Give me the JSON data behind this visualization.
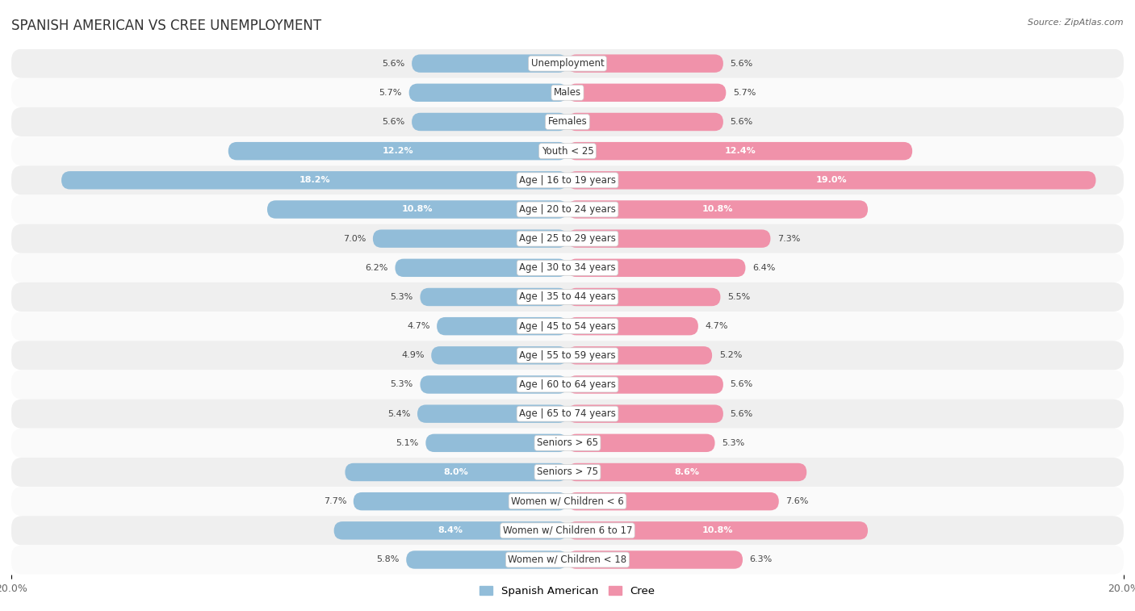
{
  "title": "SPANISH AMERICAN VS CREE UNEMPLOYMENT",
  "source": "Source: ZipAtlas.com",
  "categories": [
    "Unemployment",
    "Males",
    "Females",
    "Youth < 25",
    "Age | 16 to 19 years",
    "Age | 20 to 24 years",
    "Age | 25 to 29 years",
    "Age | 30 to 34 years",
    "Age | 35 to 44 years",
    "Age | 45 to 54 years",
    "Age | 55 to 59 years",
    "Age | 60 to 64 years",
    "Age | 65 to 74 years",
    "Seniors > 65",
    "Seniors > 75",
    "Women w/ Children < 6",
    "Women w/ Children 6 to 17",
    "Women w/ Children < 18"
  ],
  "spanish_american": [
    5.6,
    5.7,
    5.6,
    12.2,
    18.2,
    10.8,
    7.0,
    6.2,
    5.3,
    4.7,
    4.9,
    5.3,
    5.4,
    5.1,
    8.0,
    7.7,
    8.4,
    5.8
  ],
  "cree": [
    5.6,
    5.7,
    5.6,
    12.4,
    19.0,
    10.8,
    7.3,
    6.4,
    5.5,
    4.7,
    5.2,
    5.6,
    5.6,
    5.3,
    8.6,
    7.6,
    10.8,
    6.3
  ],
  "spanish_american_color": "#92bdd9",
  "cree_color": "#f092aa",
  "spanish_american_color_light": "#b8d4e8",
  "cree_color_light": "#f4b8c8",
  "row_bg_light": "#efefef",
  "row_bg_white": "#fafafa",
  "axis_limit": 20.0,
  "title_fontsize": 12,
  "label_fontsize": 8.5,
  "value_fontsize": 8,
  "legend_fontsize": 9.5,
  "inside_threshold": 8.0
}
